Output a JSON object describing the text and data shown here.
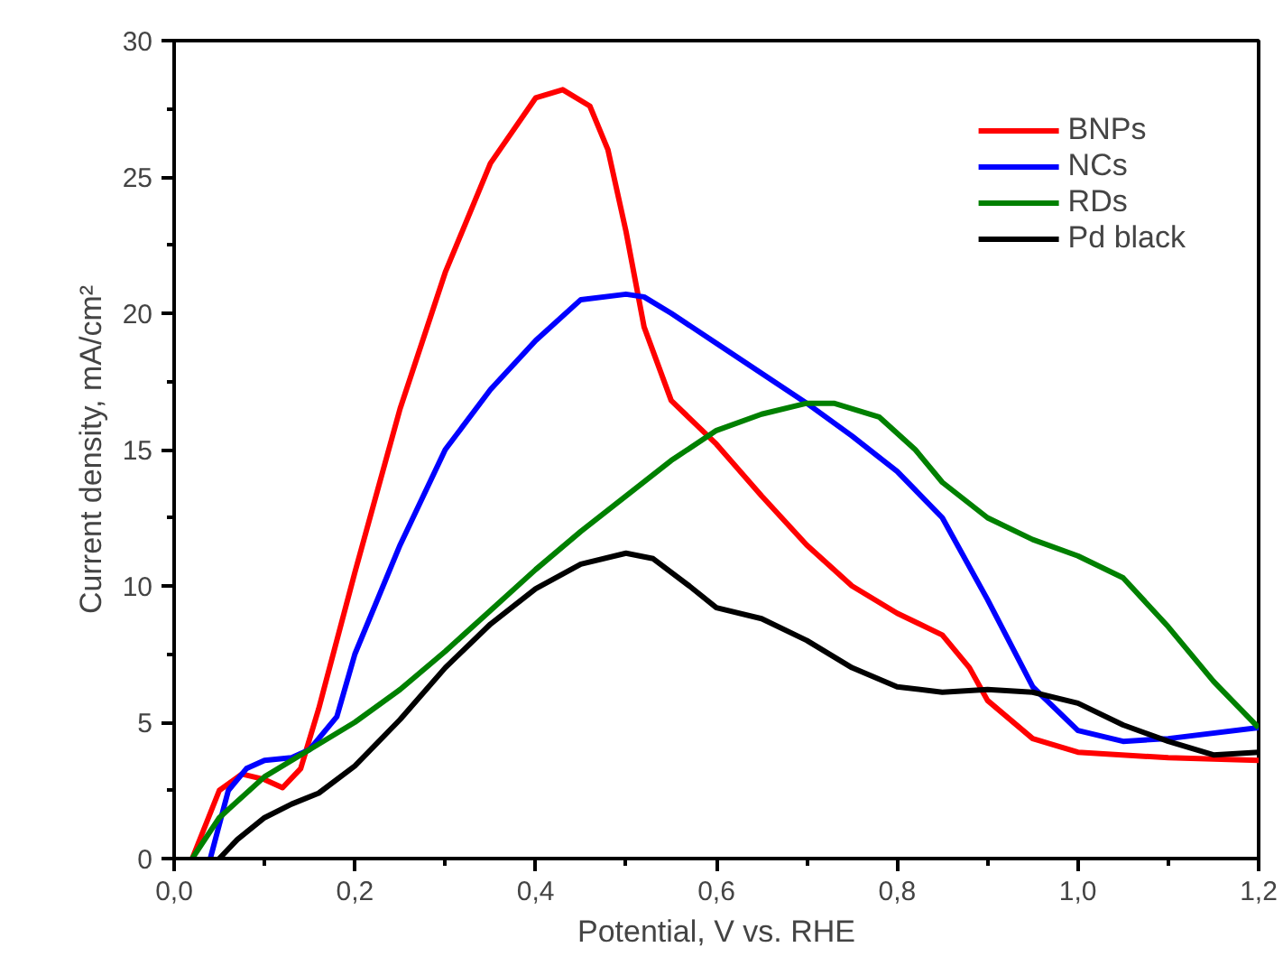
{
  "chart_data": {
    "type": "line",
    "xlabel": "Potential, V vs. RHE",
    "ylabel": "Current density, mA/cm²",
    "xlim": [
      0,
      1.2
    ],
    "ylim": [
      0,
      30
    ],
    "xticks": [
      {
        "value": 0,
        "label": "0,0"
      },
      {
        "value": 0.2,
        "label": "0,2"
      },
      {
        "value": 0.4,
        "label": "0,4"
      },
      {
        "value": 0.6,
        "label": "0,6"
      },
      {
        "value": 0.8,
        "label": "0,8"
      },
      {
        "value": 1.0,
        "label": "1,0"
      },
      {
        "value": 1.2,
        "label": "1,2"
      }
    ],
    "yticks": [
      0,
      5,
      10,
      15,
      20,
      25,
      30
    ],
    "grid": false,
    "legend": "top right",
    "marker": "none",
    "line_style": "solid",
    "series": [
      {
        "name": "BNPs",
        "color": "#ff0000",
        "x": [
          0.02,
          0.05,
          0.075,
          0.1,
          0.12,
          0.14,
          0.16,
          0.2,
          0.25,
          0.3,
          0.35,
          0.4,
          0.43,
          0.46,
          0.48,
          0.5,
          0.52,
          0.55,
          0.6,
          0.65,
          0.7,
          0.75,
          0.8,
          0.85,
          0.88,
          0.9,
          0.95,
          1.0,
          1.1,
          1.2
        ],
        "values": [
          0,
          2.5,
          3.1,
          2.9,
          2.6,
          3.3,
          5.5,
          10.5,
          16.5,
          21.5,
          25.5,
          27.9,
          28.2,
          27.6,
          26.0,
          23,
          19.5,
          16.8,
          15.2,
          13.3,
          11.5,
          10.0,
          9.0,
          8.2,
          7.0,
          5.8,
          4.4,
          3.9,
          3.7,
          3.6
        ]
      },
      {
        "name": "NCs",
        "color": "#0000ff",
        "x": [
          0.04,
          0.06,
          0.08,
          0.1,
          0.13,
          0.15,
          0.18,
          0.2,
          0.25,
          0.3,
          0.35,
          0.4,
          0.45,
          0.5,
          0.52,
          0.55,
          0.6,
          0.65,
          0.7,
          0.75,
          0.8,
          0.85,
          0.9,
          0.95,
          1.0,
          1.05,
          1.1,
          1.2
        ],
        "values": [
          0,
          2.5,
          3.3,
          3.6,
          3.7,
          4.0,
          5.2,
          7.5,
          11.5,
          15,
          17.2,
          19.0,
          20.5,
          20.7,
          20.6,
          20.0,
          18.9,
          17.8,
          16.7,
          15.5,
          14.2,
          12.5,
          9.5,
          6.3,
          4.7,
          4.3,
          4.4,
          4.8
        ]
      },
      {
        "name": "RDs",
        "color": "#008000",
        "x": [
          0.02,
          0.05,
          0.1,
          0.15,
          0.2,
          0.25,
          0.3,
          0.35,
          0.4,
          0.45,
          0.5,
          0.55,
          0.6,
          0.65,
          0.7,
          0.73,
          0.78,
          0.82,
          0.85,
          0.9,
          0.95,
          1.0,
          1.05,
          1.1,
          1.15,
          1.2
        ],
        "values": [
          0,
          1.5,
          3.0,
          4.0,
          5.0,
          6.2,
          7.6,
          9.1,
          10.6,
          12.0,
          13.3,
          14.6,
          15.7,
          16.3,
          16.7,
          16.7,
          16.2,
          15.0,
          13.8,
          12.5,
          11.7,
          11.1,
          10.3,
          8.5,
          6.5,
          4.8
        ]
      },
      {
        "name": "Pd black",
        "color": "#000000",
        "x": [
          0.05,
          0.07,
          0.1,
          0.13,
          0.16,
          0.2,
          0.25,
          0.3,
          0.35,
          0.4,
          0.45,
          0.5,
          0.53,
          0.57,
          0.6,
          0.65,
          0.7,
          0.75,
          0.8,
          0.85,
          0.9,
          0.95,
          1.0,
          1.05,
          1.1,
          1.15,
          1.2
        ],
        "values": [
          0,
          0.7,
          1.5,
          2.0,
          2.4,
          3.4,
          5.1,
          7.0,
          8.6,
          9.9,
          10.8,
          11.2,
          11.0,
          10.0,
          9.2,
          8.8,
          8.0,
          7.0,
          6.3,
          6.1,
          6.2,
          6.1,
          5.7,
          4.9,
          4.3,
          3.8,
          3.9
        ]
      }
    ]
  }
}
